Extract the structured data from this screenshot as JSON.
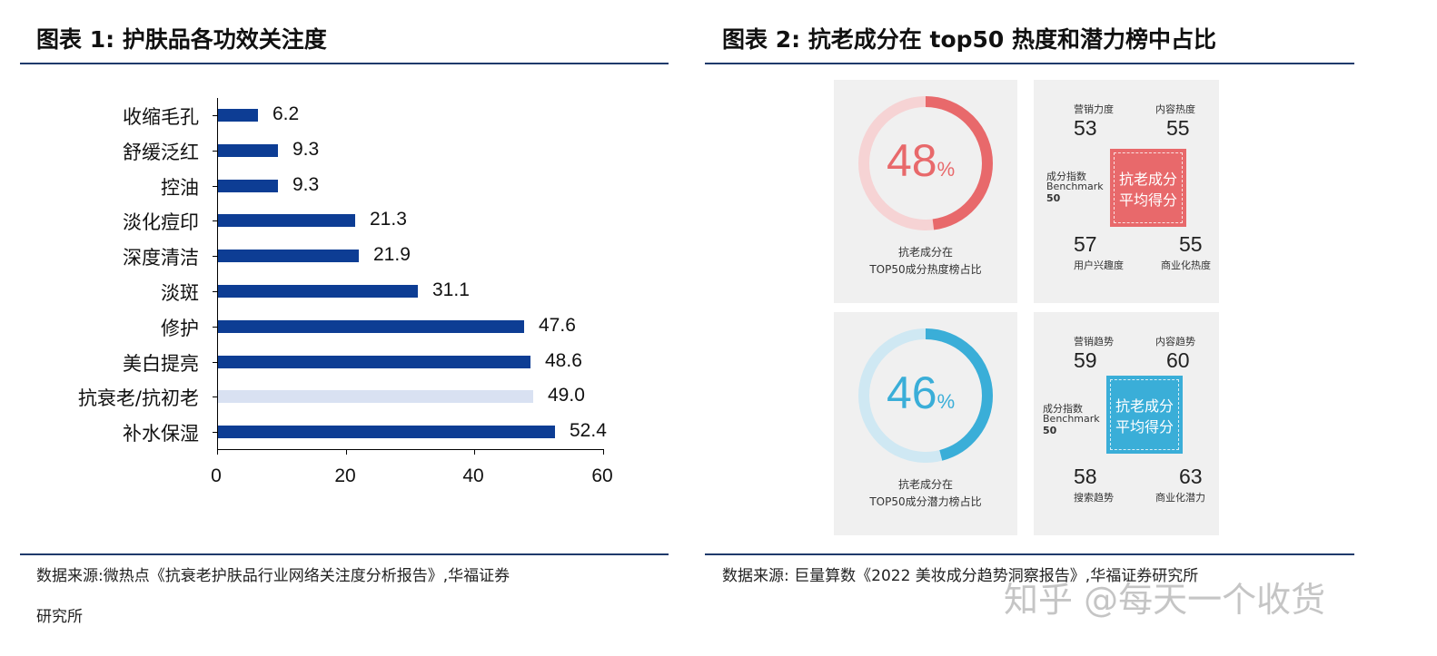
{
  "left": {
    "title": "图表 1:  护肤品各功效关注度",
    "source_line1": "数据来源:微热点《抗衰老护肤品行业网络关注度分析报告》,华福证券",
    "source_line2": "研究所"
  },
  "right": {
    "title": "图表 2:  抗老成分在 top50 热度和潜力榜中占比",
    "source": "数据来源:   巨量算数《2022 美妆成分趋势洞察报告》,华福证券研究所",
    "hot": {
      "percent": "48",
      "percent_value": 48,
      "percent_sign": "%",
      "caption_line1": "抗老成分在",
      "caption_line2": "TOP50成分热度榜占比",
      "tl_label": "营销力度",
      "tl_value": "53",
      "tr_label": "内容热度",
      "tr_value": "55",
      "bl_value": "57",
      "bl_label": "用户兴趣度",
      "br_value": "55",
      "br_label": "商业化热度",
      "side_label1": "成分指数",
      "side_label2": "Benchmark",
      "side_label3": "50",
      "box_line1": "抗老成分",
      "box_line2": "平均得分",
      "accent": "#e8696b"
    },
    "potential": {
      "percent": "46",
      "percent_value": 46,
      "percent_sign": "%",
      "caption_line1": "抗老成分在",
      "caption_line2": "TOP50成分潜力榜占比",
      "tl_label": "营销趋势",
      "tl_value": "59",
      "tr_label": "内容趋势",
      "tr_value": "60",
      "bl_value": "58",
      "bl_label": "搜索趋势",
      "br_value": "63",
      "br_label": "商业化潜力",
      "side_label1": "成分指数",
      "side_label2": "Benchmark",
      "side_label3": "50",
      "box_line1": "抗老成分",
      "box_line2": "平均得分",
      "accent": "#3aaed8"
    }
  },
  "watermark": "知乎 @每天一个收货",
  "chart_data": {
    "type": "bar",
    "orientation": "horizontal",
    "categories": [
      "收缩毛孔",
      "舒缓泛红",
      "控油",
      "淡化痘印",
      "深度清洁",
      "淡斑",
      "修护",
      "美白提亮",
      "抗衰老/抗初老",
      "补水保湿"
    ],
    "values": [
      6.2,
      9.3,
      9.3,
      21.3,
      21.9,
      31.1,
      47.6,
      48.6,
      49.0,
      52.4
    ],
    "value_labels": [
      "6.2",
      "9.3",
      "9.3",
      "21.3",
      "21.9",
      "31.1",
      "47.6",
      "48.6",
      "49.0",
      "52.4"
    ],
    "xlim": [
      0,
      60
    ],
    "xticks": [
      "0",
      "20",
      "40",
      "60"
    ],
    "grid": false,
    "bar_color": "#0d3d94",
    "highlight_color": "#d9e1f2",
    "highlight_index": 8
  }
}
